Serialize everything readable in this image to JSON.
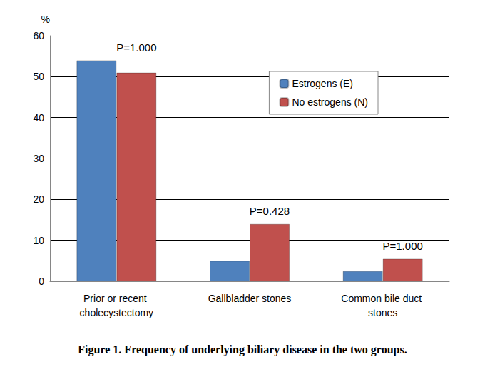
{
  "chart_data": {
    "type": "bar",
    "title": "Figure 1. Frequency of underlying biliary disease in the two groups.",
    "y_label": "%",
    "categories": [
      "Prior or recent cholecystectomy",
      "Gallbladder stones",
      "Common bile duct stones"
    ],
    "series": [
      {
        "name": "Estrogens (E)",
        "color": "#4f81bd",
        "values": [
          54,
          5,
          2.5
        ]
      },
      {
        "name": "No estrogens (N)",
        "color": "#c0504d",
        "values": [
          51,
          14,
          5.5
        ]
      }
    ],
    "annotations": [
      {
        "category": "Prior or recent cholecystectomy",
        "text": "P=1.000"
      },
      {
        "category": "Gallbladder stones",
        "text": "P=0.428"
      },
      {
        "category": "Common bile duct stones",
        "text": "P=1.000"
      }
    ],
    "ylim": [
      0,
      60
    ],
    "yticks": [
      0,
      10,
      20,
      30,
      40,
      50,
      60
    ],
    "grid": true,
    "legend": "upper right"
  }
}
